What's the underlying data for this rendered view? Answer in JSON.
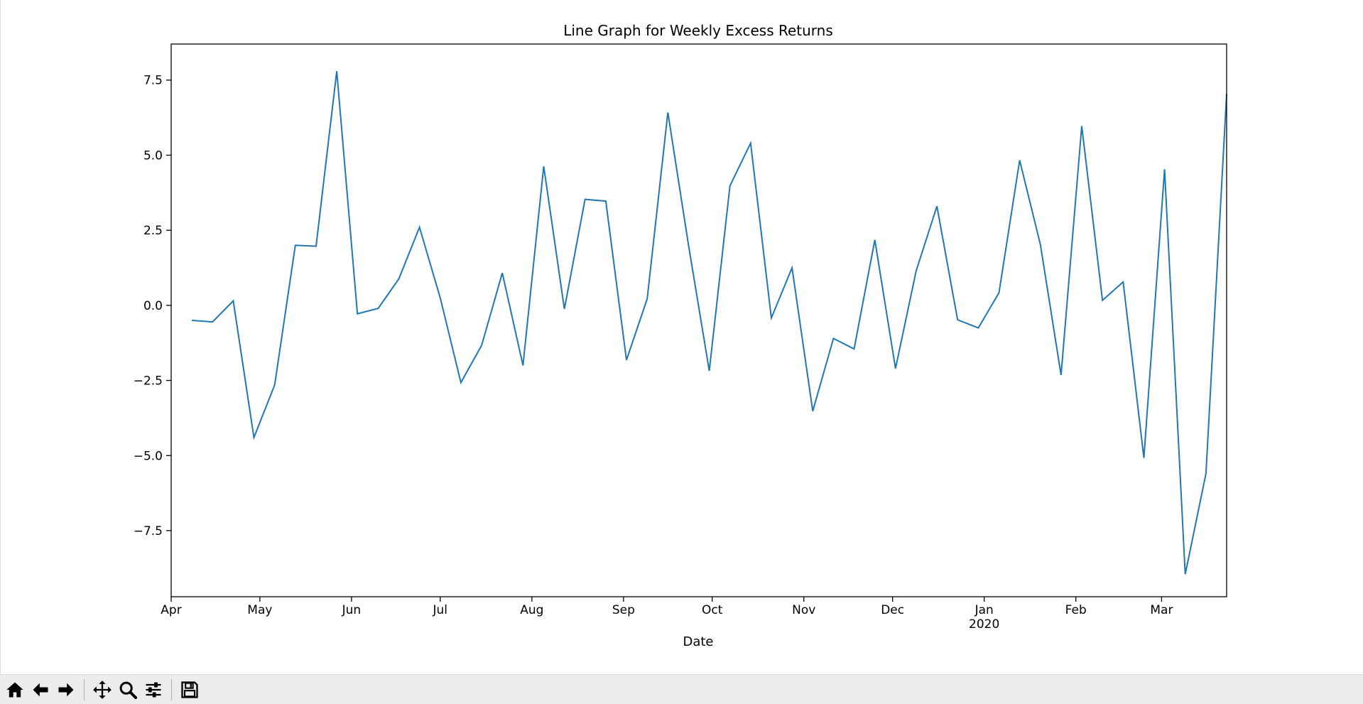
{
  "chart_data": {
    "type": "line",
    "title": "Line Graph for Weekly Excess Returns",
    "xlabel": "Date",
    "ylabel": "",
    "x_start": "2019-04-01",
    "x_end": "2020-03-23",
    "ylim": [
      -9.7,
      8.7
    ],
    "grid": false,
    "legend": "none",
    "line_color": "#1f77b4",
    "yticks": [
      {
        "value": 7.5,
        "label": "7.5"
      },
      {
        "value": 5.0,
        "label": "5.0"
      },
      {
        "value": 2.5,
        "label": "2.5"
      },
      {
        "value": 0.0,
        "label": "0.0"
      },
      {
        "value": -2.5,
        "label": "−2.5"
      },
      {
        "value": -5.0,
        "label": "−5.0"
      },
      {
        "value": -7.5,
        "label": "−7.5"
      }
    ],
    "xticks": [
      {
        "date": "2019-04-01",
        "label": "Apr"
      },
      {
        "date": "2019-05-01",
        "label": "May"
      },
      {
        "date": "2019-06-01",
        "label": "Jun"
      },
      {
        "date": "2019-07-01",
        "label": "Jul"
      },
      {
        "date": "2019-08-01",
        "label": "Aug"
      },
      {
        "date": "2019-09-01",
        "label": "Sep"
      },
      {
        "date": "2019-10-01",
        "label": "Oct"
      },
      {
        "date": "2019-11-01",
        "label": "Nov"
      },
      {
        "date": "2019-12-01",
        "label": "Dec"
      },
      {
        "date": "2020-01-01",
        "label": "Jan",
        "sublabel": "2020"
      },
      {
        "date": "2020-02-01",
        "label": "Feb"
      },
      {
        "date": "2020-03-01",
        "label": "Mar"
      }
    ],
    "series": [
      {
        "x": [
          "2019-04-08",
          "2019-04-15",
          "2019-04-22",
          "2019-04-29",
          "2019-05-06",
          "2019-05-13",
          "2019-05-20",
          "2019-05-27",
          "2019-06-03",
          "2019-06-10",
          "2019-06-17",
          "2019-06-24",
          "2019-07-01",
          "2019-07-08",
          "2019-07-15",
          "2019-07-22",
          "2019-07-29",
          "2019-08-05",
          "2019-08-12",
          "2019-08-19",
          "2019-08-26",
          "2019-09-02",
          "2019-09-09",
          "2019-09-16",
          "2019-09-23",
          "2019-09-30",
          "2019-10-07",
          "2019-10-14",
          "2019-10-21",
          "2019-10-28",
          "2019-11-04",
          "2019-11-11",
          "2019-11-18",
          "2019-11-25",
          "2019-12-02",
          "2019-12-09",
          "2019-12-16",
          "2019-12-23",
          "2019-12-30",
          "2020-01-06",
          "2020-01-13",
          "2020-01-20",
          "2020-01-27",
          "2020-02-03",
          "2020-02-10",
          "2020-02-17",
          "2020-02-24",
          "2020-03-02",
          "2020-03-09",
          "2020-03-16",
          "2020-03-23"
        ],
        "values": [
          -0.5,
          -0.55,
          0.15,
          -4.4,
          -2.65,
          2.0,
          1.97,
          7.8,
          -0.28,
          -0.1,
          0.88,
          2.6,
          0.25,
          -2.57,
          -1.33,
          1.08,
          -2.0,
          4.63,
          -0.12,
          3.53,
          3.47,
          -1.82,
          0.22,
          6.42,
          2.0,
          -2.18,
          3.98,
          5.4,
          -0.42,
          1.25,
          -3.52,
          -1.1,
          -1.45,
          2.18,
          -2.1,
          1.15,
          3.3,
          -0.48,
          -0.75,
          0.42,
          4.83,
          2.02,
          -2.32,
          5.97,
          0.17,
          0.78,
          -5.08,
          4.53,
          -8.95,
          -5.6,
          7.05
        ]
      }
    ]
  },
  "toolbar": {
    "buttons": [
      {
        "name": "home-button",
        "icon": "home-icon"
      },
      {
        "name": "back-button",
        "icon": "arrow-left-icon"
      },
      {
        "name": "forward-button",
        "icon": "arrow-right-icon"
      },
      {
        "name": "pan-button",
        "icon": "move-icon"
      },
      {
        "name": "zoom-button",
        "icon": "magnifier-icon"
      },
      {
        "name": "configure-subplots-button",
        "icon": "sliders-icon"
      },
      {
        "name": "save-button",
        "icon": "floppy-disk-icon"
      }
    ]
  }
}
